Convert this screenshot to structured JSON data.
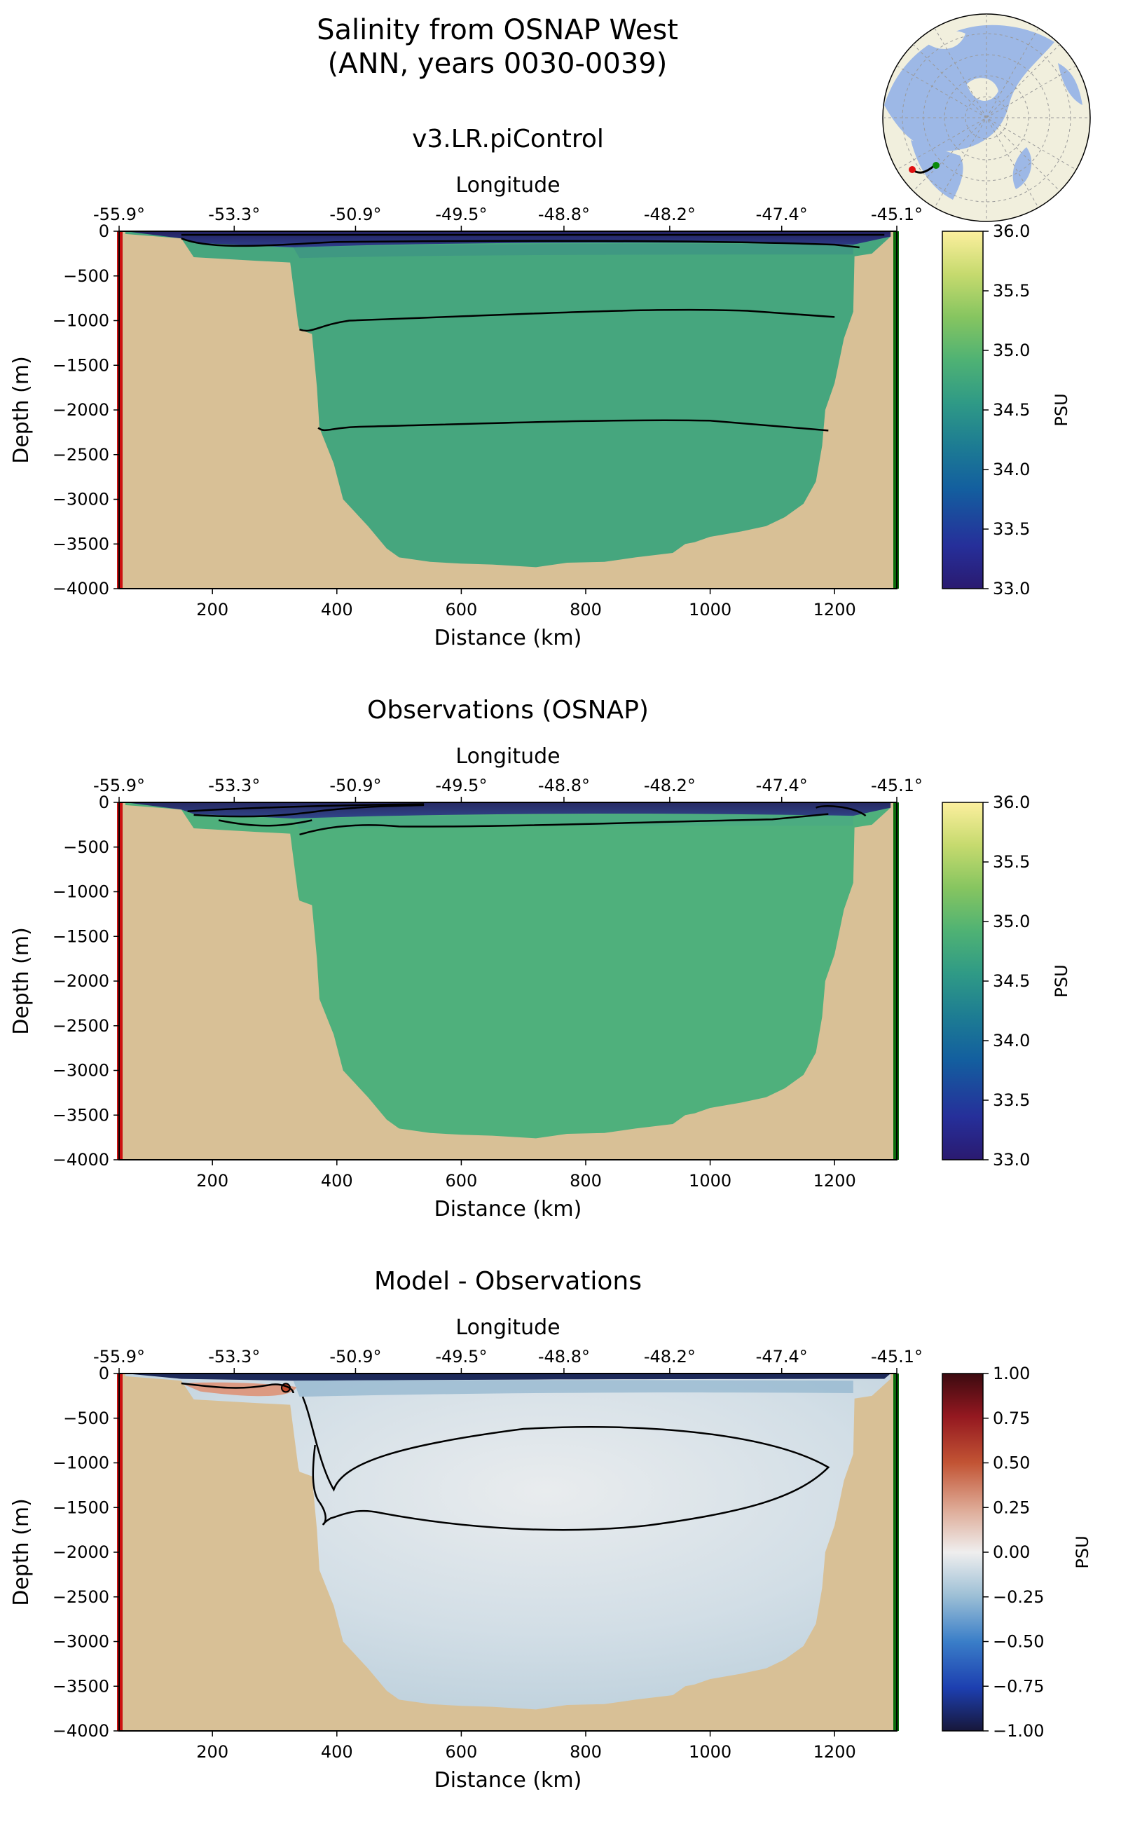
{
  "figure": {
    "title_line1": "Salinity from OSNAP West",
    "title_line2": "(ANN, years 0030-0039)"
  },
  "inset_map": {
    "name": "Arctic polar inset map",
    "start_marker_color": "#e01010",
    "end_marker_color": "#0a8a0a"
  },
  "colors": {
    "land": "#d8c096",
    "section_start": "#cc1111",
    "section_end": "#0b6b0b",
    "deep_green": "#46a67e",
    "obs_green": "#4fb07c",
    "surface_fresh": "#2a2470"
  },
  "chart_data": [
    {
      "type": "heatmap",
      "title": "v3.LR.piControl",
      "xlabel": "Distance (km)",
      "ylabel": "Depth (m)",
      "top_xlabel": "Longitude",
      "xlim": [
        50,
        1300
      ],
      "ylim": [
        -4000,
        0
      ],
      "x_ticks": [
        200,
        400,
        600,
        800,
        1000,
        1200
      ],
      "y_ticks": [
        0,
        -500,
        -1000,
        -1500,
        -2000,
        -2500,
        -3000,
        -3500,
        -4000
      ],
      "y_tick_labels": [
        "0",
        "−500",
        "−1000",
        "−1500",
        "−2000",
        "−2500",
        "−3000",
        "−3500",
        "−4000"
      ],
      "top_ticks": [
        {
          "distance": 50,
          "label": "-55.9°"
        },
        {
          "distance": 235,
          "label": "-53.3°"
        },
        {
          "distance": 430,
          "label": "-50.9°"
        },
        {
          "distance": 600,
          "label": "-49.5°"
        },
        {
          "distance": 765,
          "label": "-48.8°"
        },
        {
          "distance": 935,
          "label": "-48.2°"
        },
        {
          "distance": 1115,
          "label": "-47.4°"
        },
        {
          "distance": 1300,
          "label": "-45.1°"
        }
      ],
      "colorbar": {
        "label": "PSU",
        "min": 33.0,
        "max": 36.0,
        "ticks": [
          "33.0",
          "33.5",
          "34.0",
          "34.5",
          "35.0",
          "35.5",
          "36.0"
        ],
        "colormap": "haline"
      },
      "contour_values_psu": [
        34.0,
        34.5,
        34.8,
        34.9
      ],
      "interior_salinity_psu": 34.85
    },
    {
      "type": "heatmap",
      "title": "Observations (OSNAP)",
      "xlabel": "Distance (km)",
      "ylabel": "Depth (m)",
      "top_xlabel": "Longitude",
      "xlim": [
        50,
        1300
      ],
      "ylim": [
        -4000,
        0
      ],
      "x_ticks": [
        200,
        400,
        600,
        800,
        1000,
        1200
      ],
      "y_ticks": [
        0,
        -500,
        -1000,
        -1500,
        -2000,
        -2500,
        -3000,
        -3500,
        -4000
      ],
      "y_tick_labels": [
        "0",
        "−500",
        "−1000",
        "−1500",
        "−2000",
        "−2500",
        "−3000",
        "−3500",
        "−4000"
      ],
      "top_ticks": [
        {
          "distance": 50,
          "label": "-55.9°"
        },
        {
          "distance": 235,
          "label": "-53.3°"
        },
        {
          "distance": 430,
          "label": "-50.9°"
        },
        {
          "distance": 600,
          "label": "-49.5°"
        },
        {
          "distance": 765,
          "label": "-48.8°"
        },
        {
          "distance": 935,
          "label": "-48.2°"
        },
        {
          "distance": 1115,
          "label": "-47.4°"
        },
        {
          "distance": 1300,
          "label": "-45.1°"
        }
      ],
      "colorbar": {
        "label": "PSU",
        "min": 33.0,
        "max": 36.0,
        "ticks": [
          "33.0",
          "33.5",
          "34.0",
          "34.5",
          "35.0",
          "35.5",
          "36.0"
        ],
        "colormap": "haline"
      },
      "interior_salinity_psu": 34.92
    },
    {
      "type": "heatmap",
      "title": "Model - Observations",
      "xlabel": "Distance (km)",
      "ylabel": "Depth (m)",
      "top_xlabel": "Longitude",
      "xlim": [
        50,
        1300
      ],
      "ylim": [
        -4000,
        0
      ],
      "x_ticks": [
        200,
        400,
        600,
        800,
        1000,
        1200
      ],
      "y_ticks": [
        0,
        -500,
        -1000,
        -1500,
        -2000,
        -2500,
        -3000,
        -3500,
        -4000
      ],
      "y_tick_labels": [
        "0",
        "−500",
        "−1000",
        "−1500",
        "−2000",
        "−2500",
        "−3000",
        "−3500",
        "−4000"
      ],
      "top_ticks": [
        {
          "distance": 50,
          "label": "-55.9°"
        },
        {
          "distance": 235,
          "label": "-53.3°"
        },
        {
          "distance": 430,
          "label": "-50.9°"
        },
        {
          "distance": 600,
          "label": "-49.5°"
        },
        {
          "distance": 765,
          "label": "-48.8°"
        },
        {
          "distance": 935,
          "label": "-48.2°"
        },
        {
          "distance": 1115,
          "label": "-47.4°"
        },
        {
          "distance": 1300,
          "label": "-45.1°"
        }
      ],
      "colorbar": {
        "label": "PSU",
        "min": -1.0,
        "max": 1.0,
        "ticks": [
          "−1.00",
          "−0.75",
          "−0.50",
          "−0.25",
          "0.00",
          "0.25",
          "0.50",
          "0.75",
          "1.00"
        ],
        "colormap": "balance"
      },
      "interior_difference_psu": -0.08
    }
  ]
}
